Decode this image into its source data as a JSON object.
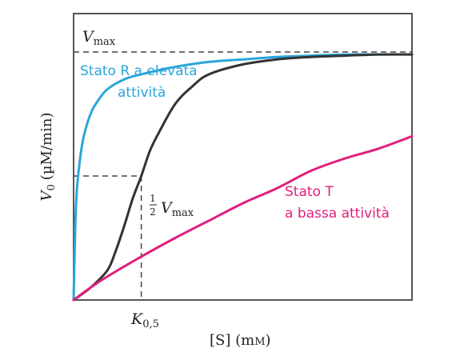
{
  "chart_data": {
    "type": "line",
    "xlabel": "[S] (mM)",
    "ylabel": "V0 (µM/min)",
    "xlim": [
      0,
      10
    ],
    "ylim": [
      0,
      1.1
    ],
    "grid": false,
    "legend": "none",
    "x_ticks": [
      {
        "x": 2.0,
        "label": "K0,5"
      }
    ],
    "reference_lines": [
      {
        "name": "Vmax",
        "y": 1.0,
        "style": "dashed",
        "label": "Vmax"
      },
      {
        "name": "half-Vmax",
        "y": 0.5,
        "style": "dashed",
        "label": "½ Vmax"
      },
      {
        "name": "K0,5",
        "x": 2.0,
        "style": "dashed",
        "label": "K0,5"
      }
    ],
    "series": [
      {
        "name": "Stato R a elevata attività",
        "color": "#2aa6d9",
        "x": [
          0.0,
          0.05,
          0.1,
          0.2,
          0.3,
          0.5,
          0.7,
          1.0,
          1.5,
          2.0,
          3.0,
          4.0,
          5.0,
          6.0,
          7.0,
          8.0,
          9.0,
          10.0
        ],
        "y": [
          0.0,
          0.3,
          0.45,
          0.58,
          0.66,
          0.75,
          0.8,
          0.85,
          0.89,
          0.91,
          0.94,
          0.96,
          0.97,
          0.98,
          0.985,
          0.99,
          0.99,
          0.99
        ]
      },
      {
        "name": "sigmoide",
        "color": "#333333",
        "x": [
          0.0,
          0.5,
          1.0,
          1.25,
          1.5,
          1.75,
          2.0,
          2.25,
          2.5,
          3.0,
          3.5,
          4.0,
          5.0,
          6.0,
          7.0,
          8.0,
          9.0,
          10.0
        ],
        "y": [
          0.0,
          0.05,
          0.12,
          0.2,
          0.3,
          0.41,
          0.5,
          0.6,
          0.67,
          0.79,
          0.86,
          0.91,
          0.95,
          0.97,
          0.98,
          0.985,
          0.99,
          0.99
        ]
      },
      {
        "name": "Stato T a bassa attività",
        "color": "#e0207b",
        "x": [
          0.0,
          0.5,
          1.0,
          2.0,
          3.0,
          4.0,
          5.0,
          6.0,
          7.0,
          8.0,
          9.0,
          10.0
        ],
        "y": [
          0.0,
          0.05,
          0.095,
          0.175,
          0.25,
          0.32,
          0.39,
          0.45,
          0.52,
          0.57,
          0.61,
          0.66
        ]
      }
    ],
    "annotations": {
      "vmax": {
        "base": "V",
        "sub": "max"
      },
      "half_vmax": {
        "frac_num": "1",
        "frac_den": "2",
        "base": "V",
        "sub": "max"
      },
      "k05": {
        "base": "K",
        "sub": "0,5"
      },
      "y_axis": {
        "base": "V",
        "sub": "0",
        "unit": "(µM/min)"
      },
      "x_axis": {
        "main": "[S] (m",
        "unit_small": "M",
        "close": ")"
      },
      "r_state": {
        "line1": "Stato R a elevata",
        "line2": "attività"
      },
      "t_state": {
        "line1": "Stato T",
        "line2": "a bassa attività"
      }
    }
  }
}
